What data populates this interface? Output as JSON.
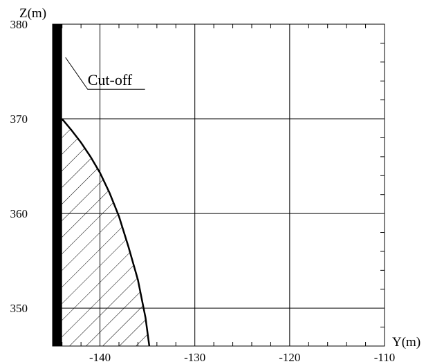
{
  "chart_data": {
    "type": "area",
    "title": "",
    "xlabel": "Y(m)",
    "ylabel": "Z(m)",
    "xlim": [
      -145,
      -110
    ],
    "ylim": [
      346,
      380
    ],
    "xticks": [
      -140,
      -130,
      -120,
      -110
    ],
    "xtick_labels": [
      "-140",
      "-130",
      "-120",
      "-110"
    ],
    "yticks": [
      350,
      360,
      370,
      380
    ],
    "ytick_labels": [
      "350",
      "360",
      "370",
      "380"
    ],
    "grid": true,
    "legend": "none",
    "cutoff_wall": {
      "x_range": [
        -145,
        -144
      ],
      "y_range": [
        346,
        380
      ],
      "color": "#000000"
    },
    "series": [
      {
        "x": [
          -144,
          -143,
          -142,
          -141,
          -140,
          -139,
          -138,
          -137,
          -136,
          -135.2,
          -134.8
        ],
        "y": [
          370,
          368.8,
          367.5,
          366.0,
          364.3,
          362.2,
          359.7,
          356.5,
          353.0,
          349.0,
          346
        ]
      }
    ],
    "hatch_fill": "between cutoff wall and curve",
    "annotations": [
      {
        "text": "Cut-off",
        "x": -144,
        "y": 374
      }
    ]
  }
}
